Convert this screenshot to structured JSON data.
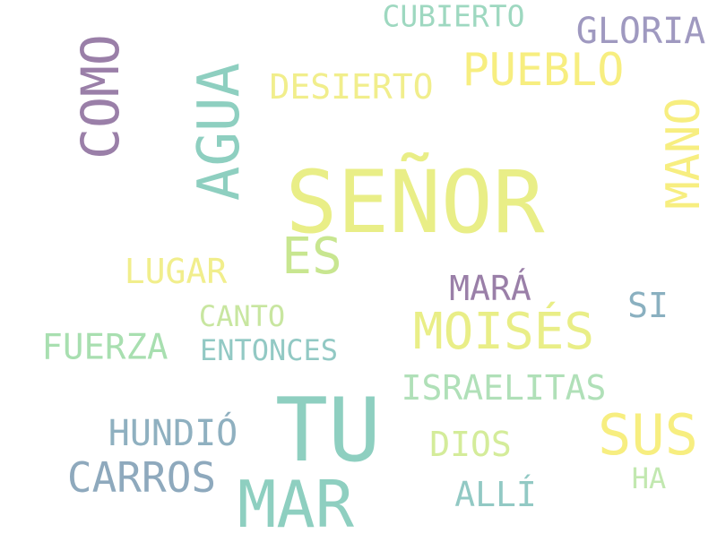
{
  "words": [
    {
      "text": "SEÑOR",
      "color": "#e9ee87"
    },
    {
      "text": "TU",
      "color": "#8ecfc0"
    },
    {
      "text": "MAR",
      "color": "#8ecfc0"
    },
    {
      "text": "AGUA",
      "color": "#8ecfc0"
    },
    {
      "text": "COMO",
      "color": "#9a7fa8"
    },
    {
      "text": "MOISÉS",
      "color": "#e9ee87"
    },
    {
      "text": "SUS",
      "color": "#f7ee80"
    },
    {
      "text": "MANO",
      "color": "#f7ee80"
    },
    {
      "text": "PUEBLO",
      "color": "#f7ee80"
    },
    {
      "text": "ES",
      "color": "#c8e690"
    },
    {
      "text": "CARROS",
      "color": "#8ea9bd"
    },
    {
      "text": "GLORIA",
      "color": "#9f99c0"
    },
    {
      "text": "DESIERTO",
      "color": "#f1ee8c"
    },
    {
      "text": "CUBIERTO",
      "color": "#9ed8c0"
    },
    {
      "text": "FUERZA",
      "color": "#a8dfb0"
    },
    {
      "text": "ISRAELITAS",
      "color": "#b0e0b8"
    },
    {
      "text": "HUNDIÓ",
      "color": "#8fb0c0"
    },
    {
      "text": "LUGAR",
      "color": "#f1ee8c"
    },
    {
      "text": "MARÁ",
      "color": "#9a7fa8"
    },
    {
      "text": "DIOS",
      "color": "#d4ec9a"
    },
    {
      "text": "ALLÍ",
      "color": "#92c9c4"
    },
    {
      "text": "ENTONCES",
      "color": "#92c9c4"
    },
    {
      "text": "CANTO",
      "color": "#c8e6a0"
    },
    {
      "text": "SI",
      "color": "#8ab0c0"
    },
    {
      "text": "HA",
      "color": "#c2e8b0"
    }
  ]
}
